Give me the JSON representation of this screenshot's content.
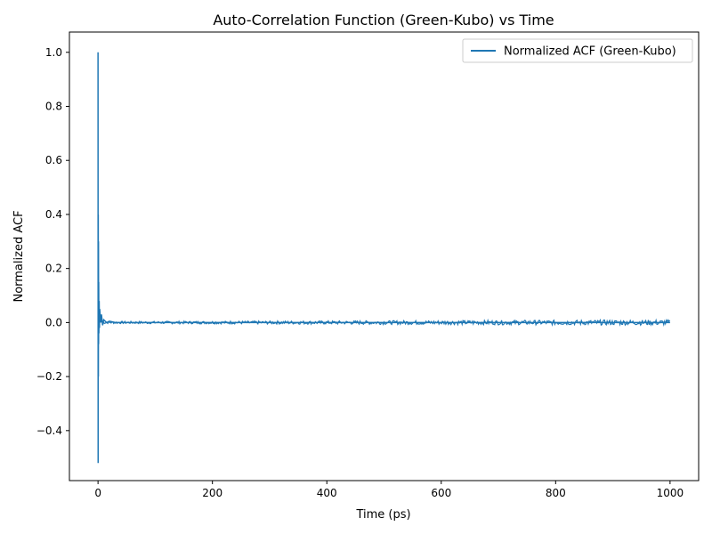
{
  "chart_data": {
    "type": "line",
    "title": "Auto-Correlation Function (Green-Kubo) vs Time",
    "xlabel": "Time (ps)",
    "ylabel": "Normalized ACF",
    "xlim": [
      -50,
      1050
    ],
    "ylim": [
      -0.585,
      1.075
    ],
    "xticks": [
      0,
      200,
      400,
      600,
      800,
      1000
    ],
    "yticks": [
      -0.4,
      -0.2,
      0.0,
      0.2,
      0.4,
      0.6,
      0.8,
      1.0
    ],
    "ytick_labels": [
      "−0.4",
      "−0.2",
      "0.0",
      "0.2",
      "0.4",
      "0.6",
      "0.8",
      "1.0"
    ],
    "grid": false,
    "legend_position": "top-right",
    "series": [
      {
        "name": "Normalized ACF (Green-Kubo)",
        "color": "#1f77b4",
        "x": [
          0,
          0.2,
          0.4,
          0.6,
          0.8,
          1.0,
          1.2,
          1.5,
          2,
          2.5,
          3,
          4,
          5,
          6,
          8,
          10,
          15,
          20,
          30,
          50,
          100,
          200,
          300,
          400,
          500,
          600,
          700,
          800,
          900,
          1000
        ],
        "values": [
          1.0,
          -0.52,
          0.4,
          -0.2,
          0.3,
          -0.08,
          0.15,
          -0.04,
          0.08,
          -0.02,
          0.05,
          0.02,
          0.0,
          0.03,
          -0.01,
          0.01,
          0.0,
          0.005,
          0.0,
          0.0,
          0.0,
          0.0,
          0.0,
          0.0,
          0.0,
          0.0,
          0.0,
          0.0,
          0.0,
          0.0
        ]
      }
    ]
  }
}
